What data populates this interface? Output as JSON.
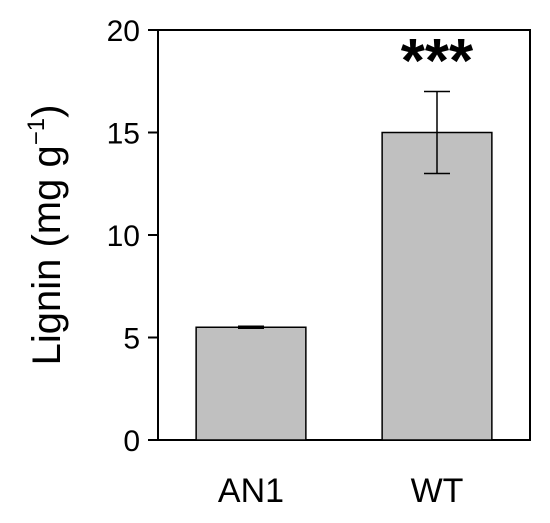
{
  "chart_data": {
    "type": "bar",
    "title": "",
    "xlabel": "",
    "ylabel": {
      "prefix": "Lignin (mg g",
      "superscript": "−1",
      "suffix": ")"
    },
    "categories": [
      "AN1",
      "WT"
    ],
    "values": [
      5.5,
      15.0
    ],
    "error": [
      0.05,
      2.0
    ],
    "annotations": [
      "",
      "***"
    ],
    "ylim": [
      0,
      20
    ],
    "yticks": [
      "0",
      "5",
      "10",
      "15",
      "20"
    ],
    "grid": false,
    "colors": {
      "bar": "#c0c0c0",
      "stroke": "#000000"
    }
  }
}
